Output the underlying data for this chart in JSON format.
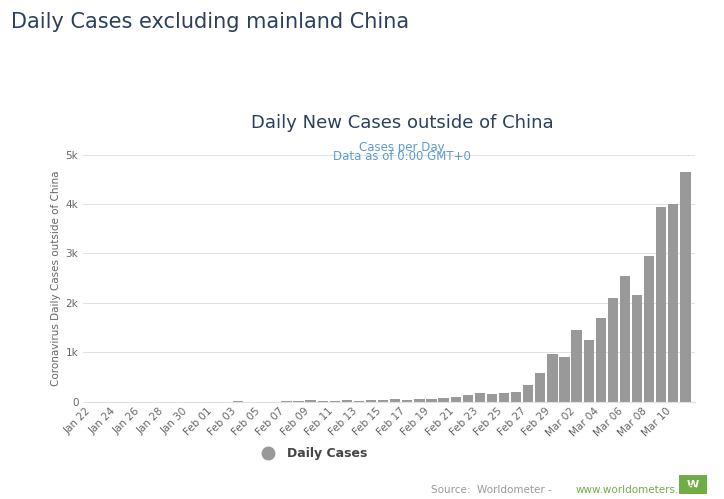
{
  "title_main": "Daily Cases excluding mainland China",
  "chart_title": "Daily New Cases outside of China",
  "subtitle_line1": "Cases per Day",
  "subtitle_line2": "Data as of 0:00 GMT+0",
  "ylabel": "Coronavirus Daily Cases outside of China",
  "legend_label": "Daily Cases",
  "bar_color": "#999999",
  "background_color": "#ffffff",
  "tick_dates": [
    "Jan 22",
    "Jan 24",
    "Jan 26",
    "Jan 28",
    "Jan 30",
    "Feb 01",
    "Feb 03",
    "Feb 05",
    "Feb 07",
    "Feb 09",
    "Feb 11",
    "Feb 13",
    "Feb 15",
    "Feb 17",
    "Feb 19",
    "Feb 21",
    "Feb 23",
    "Feb 25",
    "Feb 27",
    "Feb 29",
    "Mar 02",
    "Mar 04",
    "Mar 06",
    "Mar 08",
    "Mar 10"
  ],
  "ylim": [
    0,
    5000
  ],
  "yticks": [
    0,
    1000,
    2000,
    3000,
    4000,
    5000
  ],
  "ytick_labels": [
    "0",
    "1k",
    "2k",
    "3k",
    "4k",
    "5k"
  ],
  "title_fontsize": 15,
  "chart_title_fontsize": 13,
  "subtitle_fontsize": 8.5,
  "axis_label_fontsize": 7.5,
  "tick_fontsize": 7.5,
  "title_color": "#2d3f5e",
  "chart_title_color": "#2d3f5e",
  "subtitle_color": "#5b9bd5",
  "ylabel_color": "#666666",
  "tick_color": "#666666",
  "source_color": "#999999",
  "source_url_color": "#70ad47",
  "legend_color": "#444444",
  "grid_color": "#e0e0e0"
}
